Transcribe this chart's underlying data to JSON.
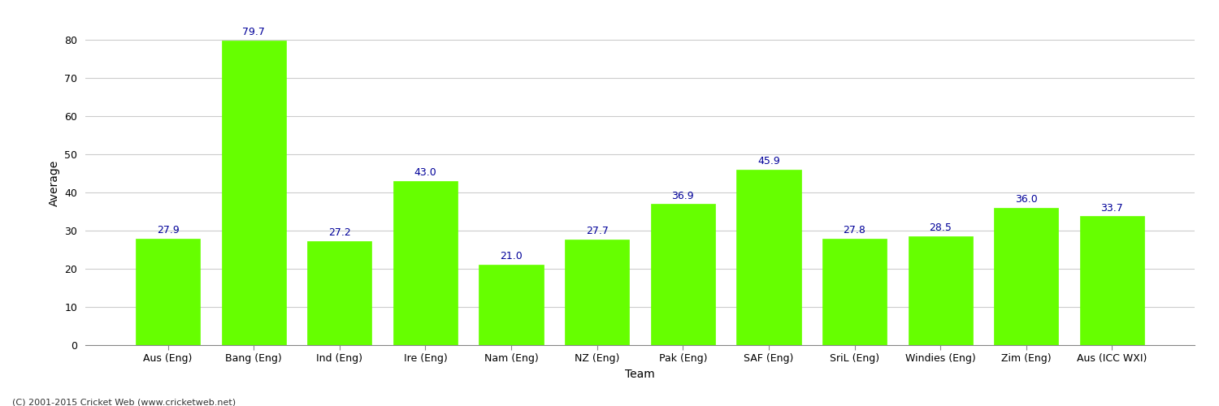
{
  "title": "",
  "xlabel": "Team",
  "ylabel": "Average",
  "categories": [
    "Aus (Eng)",
    "Bang (Eng)",
    "Ind (Eng)",
    "Ire (Eng)",
    "Nam (Eng)",
    "NZ (Eng)",
    "Pak (Eng)",
    "SAF (Eng)",
    "SriL (Eng)",
    "Windies (Eng)",
    "Zim (Eng)",
    "Aus (ICC WXI)"
  ],
  "values": [
    27.9,
    79.7,
    27.2,
    43.0,
    21.0,
    27.7,
    36.9,
    45.9,
    27.8,
    28.5,
    36.0,
    33.7
  ],
  "bar_color": "#66ff00",
  "bar_edge_color": "#66ff00",
  "value_color": "#000099",
  "value_fontsize": 9,
  "grid_color": "#cccccc",
  "background_color": "#ffffff",
  "ylim": [
    0,
    85
  ],
  "yticks": [
    0,
    10,
    20,
    30,
    40,
    50,
    60,
    70,
    80
  ],
  "axis_label_fontsize": 10,
  "tick_fontsize": 9,
  "footer": "(C) 2001-2015 Cricket Web (www.cricketweb.net)"
}
